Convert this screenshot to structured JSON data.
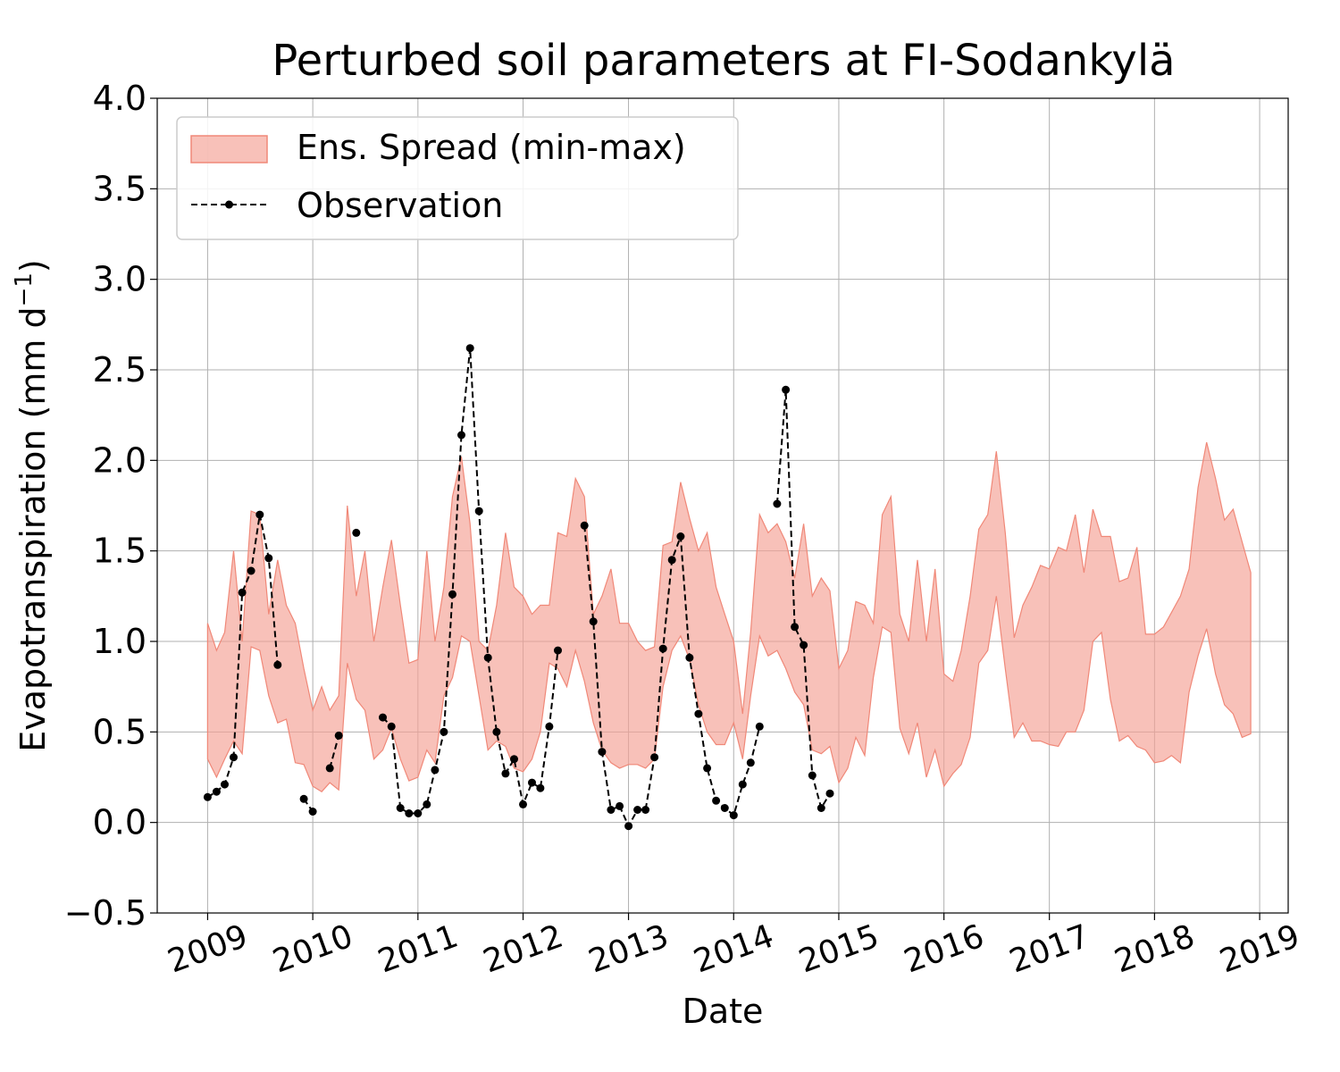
{
  "chart_data": {
    "type": "line",
    "title": "Perturbed soil parameters at FI-Sodankylä",
    "xlabel": "Date",
    "ylabel_main": "Evapotranspiration  (mm d",
    "ylabel_sup": "−1",
    "ylabel_close": ")",
    "xlim": [
      "2008-07-10",
      "2019-04-10"
    ],
    "ylim": [
      -0.5,
      4.0
    ],
    "grid": true,
    "legend_position": "top-left",
    "x_ticks": [
      "2009",
      "2010",
      "2011",
      "2012",
      "2013",
      "2014",
      "2015",
      "2016",
      "2017",
      "2018",
      "2019"
    ],
    "y_ticks": [
      "−0.5",
      "0.0",
      "0.5",
      "1.0",
      "1.5",
      "2.0",
      "2.5",
      "3.0",
      "3.5",
      "4.0"
    ],
    "colors": {
      "spread_fill": "#f4a093",
      "spread_edge": "#f08878",
      "observation": "#000000",
      "grid": "#b0b0b0"
    },
    "series": [
      {
        "name": "Ens. Spread (min-max)",
        "kind": "band",
        "x": [
          "2009-01",
          "2009-02",
          "2009-03",
          "2009-04",
          "2009-05",
          "2009-06",
          "2009-07",
          "2009-08",
          "2009-09",
          "2009-10",
          "2009-11",
          "2009-12",
          "2010-01",
          "2010-02",
          "2010-03",
          "2010-04",
          "2010-05",
          "2010-06",
          "2010-07",
          "2010-08",
          "2010-09",
          "2010-10",
          "2010-11",
          "2010-12",
          "2011-01",
          "2011-02",
          "2011-03",
          "2011-04",
          "2011-05",
          "2011-06",
          "2011-07",
          "2011-08",
          "2011-09",
          "2011-10",
          "2011-11",
          "2011-12",
          "2012-01",
          "2012-02",
          "2012-03",
          "2012-04",
          "2012-05",
          "2012-06",
          "2012-07",
          "2012-08",
          "2012-09",
          "2012-10",
          "2012-11",
          "2012-12",
          "2013-01",
          "2013-02",
          "2013-03",
          "2013-04",
          "2013-05",
          "2013-06",
          "2013-07",
          "2013-08",
          "2013-09",
          "2013-10",
          "2013-11",
          "2013-12",
          "2014-01",
          "2014-02",
          "2014-03",
          "2014-04",
          "2014-05",
          "2014-06",
          "2014-07",
          "2014-08",
          "2014-09",
          "2014-10",
          "2014-11",
          "2014-12",
          "2015-01",
          "2015-02",
          "2015-03",
          "2015-04",
          "2015-05",
          "2015-06",
          "2015-07",
          "2015-08",
          "2015-09",
          "2015-10",
          "2015-11",
          "2015-12",
          "2016-01",
          "2016-02",
          "2016-03",
          "2016-04",
          "2016-05",
          "2016-06",
          "2016-07",
          "2016-08",
          "2016-09",
          "2016-10",
          "2016-11",
          "2016-12",
          "2017-01",
          "2017-02",
          "2017-03",
          "2017-04",
          "2017-05",
          "2017-06",
          "2017-07",
          "2017-08",
          "2017-09",
          "2017-10",
          "2017-11",
          "2017-12",
          "2018-01",
          "2018-02",
          "2018-03",
          "2018-04",
          "2018-05",
          "2018-06",
          "2018-07",
          "2018-08",
          "2018-09",
          "2018-10",
          "2018-11",
          "2018-12"
        ],
        "upper": [
          1.1,
          0.95,
          1.05,
          1.5,
          1.0,
          1.72,
          1.7,
          1.15,
          1.45,
          1.2,
          1.1,
          0.85,
          0.62,
          0.75,
          0.62,
          0.7,
          1.75,
          1.25,
          1.5,
          1.0,
          1.3,
          1.56,
          1.2,
          0.88,
          0.9,
          1.5,
          1.0,
          1.3,
          1.8,
          2.02,
          1.65,
          1.0,
          0.95,
          1.2,
          1.6,
          1.3,
          1.25,
          1.15,
          1.2,
          1.2,
          1.6,
          1.58,
          1.9,
          1.8,
          1.15,
          1.25,
          1.4,
          1.1,
          1.1,
          1.0,
          0.95,
          0.97,
          1.53,
          1.55,
          1.88,
          1.68,
          1.5,
          1.6,
          1.3,
          1.15,
          1.0,
          0.6,
          1.05,
          1.7,
          1.6,
          1.65,
          1.55,
          1.35,
          1.65,
          1.25,
          1.35,
          1.28,
          0.85,
          0.95,
          1.22,
          1.2,
          1.1,
          1.7,
          1.8,
          1.15,
          1.0,
          1.45,
          1.0,
          1.4,
          0.82,
          0.78,
          0.95,
          1.25,
          1.62,
          1.7,
          2.05,
          1.6,
          1.02,
          1.2,
          1.3,
          1.42,
          1.4,
          1.52,
          1.5,
          1.7,
          1.38,
          1.73,
          1.58,
          1.58,
          1.33,
          1.35,
          1.52,
          1.04,
          1.04,
          1.08,
          1.16,
          1.25,
          1.4,
          1.85,
          2.1,
          1.9,
          1.67,
          1.73,
          1.55,
          1.38
        ],
        "lower": [
          0.35,
          0.25,
          0.35,
          0.45,
          0.38,
          0.97,
          0.95,
          0.7,
          0.55,
          0.57,
          0.33,
          0.32,
          0.2,
          0.17,
          0.22,
          0.18,
          0.88,
          0.68,
          0.62,
          0.35,
          0.4,
          0.52,
          0.35,
          0.23,
          0.25,
          0.4,
          0.33,
          0.7,
          0.8,
          1.03,
          1.0,
          0.7,
          0.4,
          0.45,
          0.42,
          0.3,
          0.28,
          0.35,
          0.5,
          0.88,
          0.85,
          0.75,
          0.95,
          0.78,
          0.55,
          0.4,
          0.33,
          0.3,
          0.32,
          0.32,
          0.3,
          0.35,
          0.75,
          0.95,
          1.03,
          0.9,
          0.65,
          0.5,
          0.43,
          0.43,
          0.55,
          0.35,
          0.7,
          1.03,
          0.92,
          0.95,
          0.85,
          0.72,
          0.65,
          0.4,
          0.38,
          0.42,
          0.22,
          0.3,
          0.47,
          0.37,
          0.8,
          1.08,
          1.05,
          0.52,
          0.38,
          0.55,
          0.25,
          0.4,
          0.2,
          0.27,
          0.32,
          0.47,
          0.88,
          0.95,
          1.25,
          0.85,
          0.47,
          0.55,
          0.45,
          0.45,
          0.43,
          0.42,
          0.5,
          0.5,
          0.62,
          1.0,
          1.05,
          0.68,
          0.45,
          0.48,
          0.42,
          0.4,
          0.33,
          0.34,
          0.37,
          0.33,
          0.72,
          0.92,
          1.07,
          0.82,
          0.65,
          0.6,
          0.47,
          0.49
        ]
      },
      {
        "name": "Observation",
        "kind": "line",
        "style": "dashed-with-markers",
        "x": [
          "2009-01",
          "2009-02",
          "2009-03",
          "2009-04",
          "2009-05",
          "2009-06",
          "2009-07",
          "2009-08",
          "2009-09",
          null,
          "2009-12",
          "2010-01",
          null,
          "2010-03",
          "2010-04",
          null,
          "2010-06",
          null,
          "2010-09",
          "2010-10",
          "2010-11",
          "2010-12",
          "2011-01",
          "2011-02",
          "2011-03",
          "2011-04",
          "2011-05",
          "2011-06",
          "2011-07",
          "2011-08",
          "2011-09",
          "2011-10",
          "2011-11",
          "2011-12",
          "2012-01",
          "2012-02",
          "2012-03",
          "2012-04",
          "2012-05",
          null,
          "2012-08",
          "2012-09",
          "2012-10",
          "2012-11",
          "2012-12",
          "2013-01",
          "2013-02",
          "2013-03",
          "2013-04",
          "2013-05",
          "2013-06",
          "2013-07",
          "2013-08",
          "2013-09",
          "2013-10",
          "2013-11",
          "2013-12",
          "2014-01",
          "2014-02",
          "2014-03",
          "2014-04",
          null,
          "2014-06",
          "2014-07",
          "2014-08",
          "2014-09",
          "2014-10",
          "2014-11",
          "2014-12"
        ],
        "y": [
          0.14,
          0.17,
          0.21,
          0.36,
          1.27,
          1.39,
          1.7,
          1.46,
          0.87,
          null,
          0.13,
          0.06,
          null,
          0.3,
          0.48,
          null,
          1.6,
          null,
          0.58,
          0.53,
          0.08,
          0.05,
          0.05,
          0.1,
          0.29,
          0.5,
          1.26,
          2.14,
          2.62,
          1.72,
          0.91,
          0.5,
          0.27,
          0.35,
          0.1,
          0.22,
          0.19,
          0.53,
          0.95,
          null,
          1.64,
          1.11,
          0.39,
          0.07,
          0.09,
          -0.02,
          0.07,
          0.07,
          0.36,
          0.96,
          1.45,
          1.58,
          0.91,
          0.6,
          0.3,
          0.12,
          0.08,
          0.04,
          0.21,
          0.33,
          0.53,
          null,
          1.76,
          2.39,
          1.08,
          0.98,
          0.26,
          0.08,
          0.16
        ]
      }
    ]
  }
}
